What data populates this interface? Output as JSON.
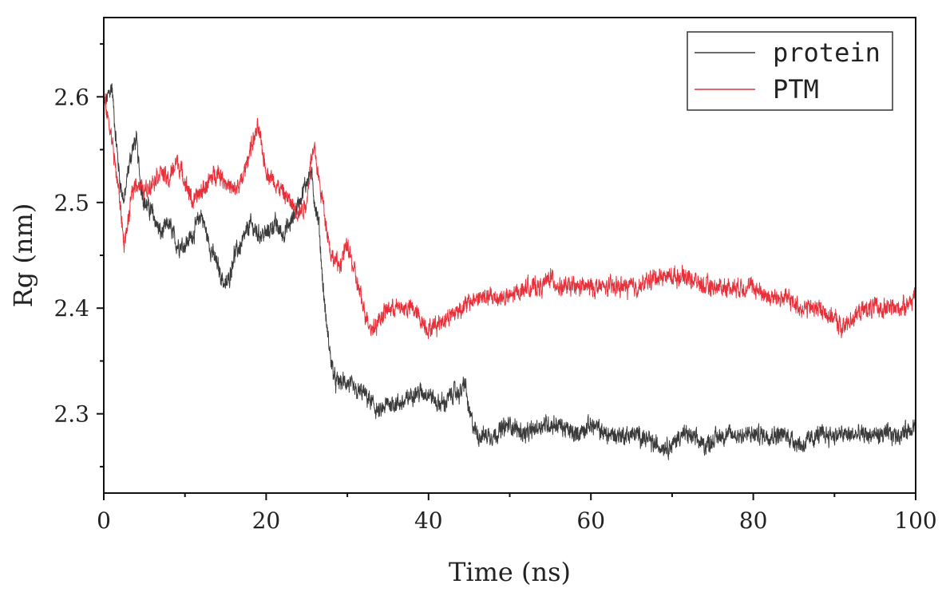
{
  "chart_data": {
    "type": "line",
    "title": "",
    "xlabel": "Time (ns)",
    "ylabel": "Rg (nm)",
    "xlim": [
      0,
      100
    ],
    "ylim": [
      2.225,
      2.675
    ],
    "xticks": [
      0,
      20,
      40,
      60,
      80,
      100
    ],
    "xtick_labels": [
      "0",
      "20",
      "40",
      "60",
      "80",
      "100"
    ],
    "yticks": [
      2.3,
      2.4,
      2.5,
      2.6
    ],
    "ytick_labels": [
      "2.3",
      "2.4",
      "2.5",
      "2.6"
    ],
    "grid": false,
    "legend_position": "top-right",
    "series": [
      {
        "name": "protein",
        "color": "#3a3a3a",
        "x": [
          0,
          0.5,
          1,
          1.5,
          2,
          2.5,
          3,
          3.5,
          4,
          4.5,
          5,
          6,
          7,
          8,
          9,
          10,
          11,
          12,
          13,
          14,
          15,
          15.5,
          16,
          17,
          18,
          19,
          20,
          21,
          22,
          23,
          24,
          25,
          25.5,
          26,
          26.5,
          27,
          27.5,
          28,
          28.5,
          29,
          30,
          31,
          32,
          33,
          34,
          35,
          36,
          37,
          38,
          39,
          40,
          41,
          42,
          43,
          44,
          44.5,
          45,
          46,
          47,
          48,
          50,
          52,
          54,
          56,
          58,
          60,
          62,
          64,
          66,
          68,
          70,
          71,
          72,
          74,
          76,
          78,
          80,
          82,
          84,
          86,
          88,
          90,
          92,
          94,
          96,
          98,
          100
        ],
        "values": [
          2.59,
          2.6,
          2.61,
          2.56,
          2.52,
          2.5,
          2.53,
          2.55,
          2.56,
          2.52,
          2.5,
          2.49,
          2.47,
          2.48,
          2.46,
          2.46,
          2.47,
          2.49,
          2.46,
          2.44,
          2.42,
          2.43,
          2.45,
          2.46,
          2.48,
          2.47,
          2.47,
          2.48,
          2.47,
          2.48,
          2.5,
          2.52,
          2.53,
          2.5,
          2.48,
          2.42,
          2.38,
          2.35,
          2.33,
          2.33,
          2.33,
          2.32,
          2.32,
          2.31,
          2.3,
          2.31,
          2.31,
          2.31,
          2.32,
          2.32,
          2.32,
          2.31,
          2.31,
          2.32,
          2.32,
          2.33,
          2.3,
          2.28,
          2.28,
          2.28,
          2.29,
          2.28,
          2.29,
          2.29,
          2.28,
          2.29,
          2.28,
          2.28,
          2.28,
          2.27,
          2.27,
          2.28,
          2.28,
          2.27,
          2.28,
          2.28,
          2.28,
          2.28,
          2.28,
          2.27,
          2.28,
          2.28,
          2.28,
          2.28,
          2.28,
          2.28,
          2.29
        ],
        "noise": 0.006
      },
      {
        "name": "PTM",
        "color": "#e8303a",
        "x": [
          0,
          0.5,
          1,
          1.5,
          2,
          2.5,
          3,
          3.5,
          4,
          5,
          6,
          7,
          8,
          9,
          10,
          11,
          12,
          13,
          14,
          15,
          16,
          17,
          18,
          19,
          20,
          21,
          22,
          23,
          24,
          25,
          25.5,
          26,
          26.5,
          27,
          28,
          29,
          30,
          31,
          32,
          33,
          34,
          35,
          36,
          38,
          40,
          42,
          44,
          46,
          48,
          50,
          52,
          54,
          55,
          56,
          58,
          60,
          62,
          64,
          66,
          68,
          70,
          72,
          74,
          76,
          78,
          80,
          82,
          84,
          86,
          88,
          90,
          91,
          92,
          94,
          96,
          98,
          100
        ],
        "values": [
          2.6,
          2.58,
          2.56,
          2.53,
          2.5,
          2.46,
          2.48,
          2.51,
          2.52,
          2.51,
          2.52,
          2.53,
          2.52,
          2.54,
          2.52,
          2.5,
          2.51,
          2.52,
          2.53,
          2.52,
          2.51,
          2.52,
          2.55,
          2.57,
          2.53,
          2.52,
          2.51,
          2.5,
          2.49,
          2.5,
          2.54,
          2.55,
          2.52,
          2.5,
          2.45,
          2.44,
          2.46,
          2.43,
          2.4,
          2.38,
          2.39,
          2.4,
          2.4,
          2.4,
          2.38,
          2.39,
          2.4,
          2.41,
          2.41,
          2.41,
          2.42,
          2.42,
          2.43,
          2.42,
          2.42,
          2.42,
          2.42,
          2.42,
          2.42,
          2.43,
          2.43,
          2.43,
          2.42,
          2.42,
          2.42,
          2.42,
          2.41,
          2.41,
          2.4,
          2.4,
          2.39,
          2.38,
          2.39,
          2.4,
          2.4,
          2.4,
          2.41
        ],
        "noise": 0.006
      }
    ]
  }
}
